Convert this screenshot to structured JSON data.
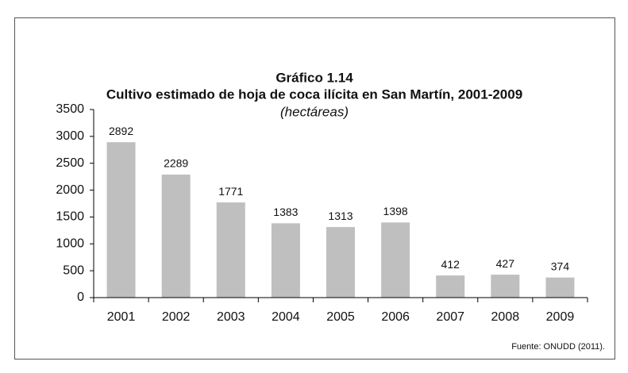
{
  "chart_data": {
    "type": "bar",
    "heading": "Gráfico 1.14",
    "title": "Cultivo estimado de hoja de coca ilícita en San Martín, 2001-2009",
    "subtitle": "(hectáreas)",
    "categories": [
      "2001",
      "2002",
      "2003",
      "2004",
      "2005",
      "2006",
      "2007",
      "2008",
      "2009"
    ],
    "values": [
      2892,
      2289,
      1771,
      1383,
      1313,
      1398,
      412,
      427,
      374
    ],
    "color": "#bfbfbf",
    "ylim": [
      0,
      3500
    ],
    "yticks": [
      0,
      500,
      1000,
      1500,
      2000,
      2500,
      3000,
      3500
    ],
    "grid": false,
    "source": "Fuente: ONUDD (2011)."
  }
}
